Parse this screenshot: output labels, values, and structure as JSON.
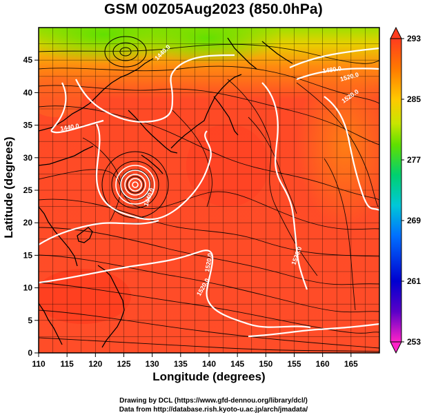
{
  "title": "GSM 00Z05Aug2023 (850.0hPa)",
  "x_axis": {
    "label": "Longitude (degrees)",
    "range": [
      110,
      170
    ],
    "ticks": [
      "110",
      "115",
      "120",
      "125",
      "130",
      "135",
      "140",
      "145",
      "150",
      "155",
      "160",
      "165"
    ]
  },
  "y_axis": {
    "label": "Latitude  (degrees)",
    "range": [
      0,
      50
    ],
    "ticks": [
      "0",
      "5",
      "10",
      "15",
      "20",
      "25",
      "30",
      "35",
      "40",
      "45"
    ]
  },
  "colorbar": {
    "range": [
      253,
      293
    ],
    "ticks": [
      "253",
      "261",
      "269",
      "277",
      "285",
      "293"
    ],
    "colors": [
      "#ff22c8",
      "#5a00c8",
      "#0000d0",
      "#0070ff",
      "#00c8d8",
      "#00d070",
      "#60e000",
      "#c8e600",
      "#ffc800",
      "#ff7a00",
      "#ff3c1e"
    ]
  },
  "contour_labels": [
    "1440.0",
    "1440.0",
    "1480.0",
    "1520.0",
    "1520.0",
    "1440.0",
    "1520.0",
    "1520.0",
    "1520.0"
  ],
  "typhoon_center": {
    "lon": 126.3,
    "lat": 28.0
  },
  "credits": {
    "line1": "Drawing by DCL (https://www.gfd-dennou.org/library/dcl/)",
    "line2": "Data from http://database.rish.kyoto-u.ac.jp/arch/jmadata/"
  }
}
